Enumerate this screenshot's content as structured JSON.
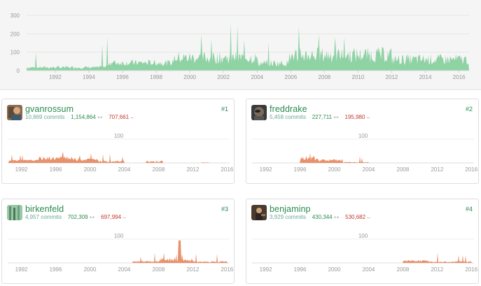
{
  "main_chart": {
    "y_ticks": [
      "0",
      "100",
      "200",
      "300"
    ],
    "x_ticks": [
      "1992",
      "1994",
      "1996",
      "1998",
      "2000",
      "2002",
      "2004",
      "2006",
      "2008",
      "2010",
      "2012",
      "2014",
      "2016"
    ],
    "color": "#8fd2a4"
  },
  "contributors": [
    {
      "username": "gvanrossum",
      "commits": "10,869 commits",
      "additions": "1,154,864",
      "add_sym": "++",
      "deletions": "707,661",
      "del_sym": "--",
      "rank": "#1",
      "grid_label": "100",
      "x_ticks": [
        "1992",
        "1996",
        "2000",
        "2004",
        "2008",
        "2012",
        "2016"
      ],
      "profile": "gvanrossum"
    },
    {
      "username": "freddrake",
      "commits": "5,458 commits",
      "additions": "227,711",
      "add_sym": "++",
      "deletions": "195,980",
      "del_sym": "--",
      "rank": "#2",
      "grid_label": "100",
      "x_ticks": [
        "1992",
        "1996",
        "2000",
        "2004",
        "2008",
        "2012",
        "2016"
      ],
      "profile": "freddrake"
    },
    {
      "username": "birkenfeld",
      "commits": "4,957 commits",
      "additions": "702,309",
      "add_sym": "++",
      "deletions": "697,994",
      "del_sym": "--",
      "rank": "#3",
      "grid_label": "100",
      "x_ticks": [
        "1992",
        "1996",
        "2000",
        "2004",
        "2008",
        "2012",
        "2016"
      ],
      "profile": "birkenfeld"
    },
    {
      "username": "benjaminp",
      "commits": "3,929 commits",
      "additions": "430,344",
      "add_sym": "++",
      "deletions": "530,682",
      "del_sym": "--",
      "rank": "#4",
      "grid_label": "100",
      "x_ticks": [
        "1992",
        "1996",
        "2000",
        "2004",
        "2008",
        "2012",
        "2016"
      ],
      "profile": "benjaminp"
    }
  ],
  "colors": {
    "accent": "#2a8a4e",
    "additions": "#2a8a4e",
    "deletions": "#c0392b",
    "contributor_fill": "#e8916b",
    "main_fill": "#8fd2a4"
  }
}
